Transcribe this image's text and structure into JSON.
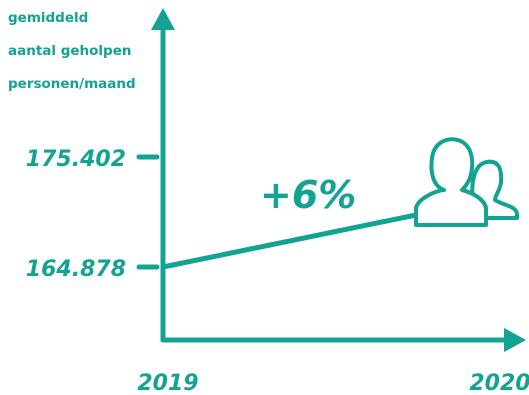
{
  "chart_data": {
    "type": "line",
    "ylabel_lines": [
      "gemiddeld",
      "aantal geholpen",
      "personen/maand"
    ],
    "x": [
      "2019",
      "2020"
    ],
    "values": [
      164878,
      175402
    ],
    "y_tick_labels": [
      "175.402",
      "164.878"
    ],
    "annotation": "+6%",
    "grid": false,
    "legend": "none"
  },
  "colors": {
    "accent": "#13a393"
  },
  "icons": {
    "people": "people-icon"
  }
}
